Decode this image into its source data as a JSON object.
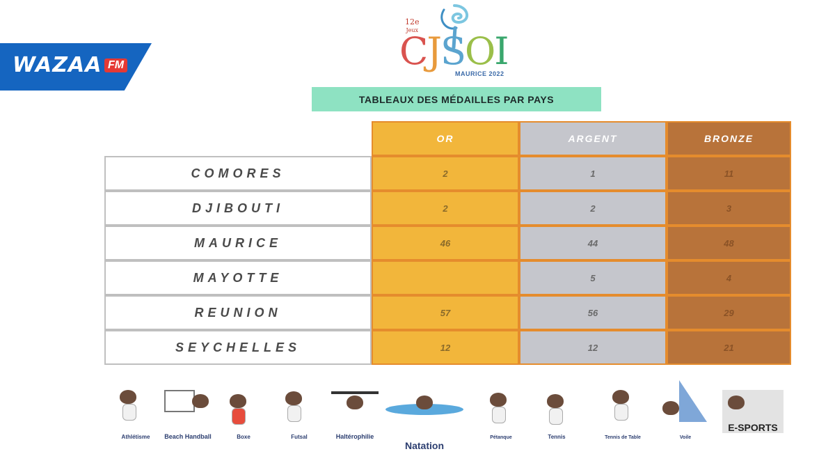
{
  "broadcaster": {
    "name": "WAZAA",
    "suffix": "FM"
  },
  "logo": {
    "edition": "12e",
    "edition_sub": "Jeux",
    "letters": [
      "C",
      "J",
      "S",
      "O",
      "I"
    ],
    "subtitle": "MAURICE 2022"
  },
  "title": "TABLEAUX DES MÉDAILLES PAR PAYS",
  "columns": {
    "gold": "OR",
    "silver": "ARGENT",
    "bronze": "BRONZE"
  },
  "rows": [
    {
      "country": "COMORES",
      "gold": "2",
      "silver": "1",
      "bronze": "11"
    },
    {
      "country": "DJIBOUTI",
      "gold": "2",
      "silver": "2",
      "bronze": "3"
    },
    {
      "country": "MAURICE",
      "gold": "46",
      "silver": "44",
      "bronze": "48"
    },
    {
      "country": "MAYOTTE",
      "gold": "",
      "silver": "5",
      "bronze": "4"
    },
    {
      "country": "REUNION",
      "gold": "57",
      "silver": "56",
      "bronze": "29"
    },
    {
      "country": "SEYCHELLES",
      "gold": "12",
      "silver": "12",
      "bronze": "21"
    }
  ],
  "sports": [
    "Athlétisme",
    "Beach Handball",
    "Boxe",
    "Futsal",
    "Haltérophilie",
    "Natation",
    "Pétanque",
    "Tennis",
    "Tennis de Table",
    "Voile",
    "E-SPORTS"
  ],
  "colors": {
    "gold": "#f2b63b",
    "silver": "#c5c6cc",
    "bronze": "#b8733a",
    "border": "#e58c2d",
    "banner": "#8ee2c2",
    "broadcaster": "#1565c0"
  }
}
